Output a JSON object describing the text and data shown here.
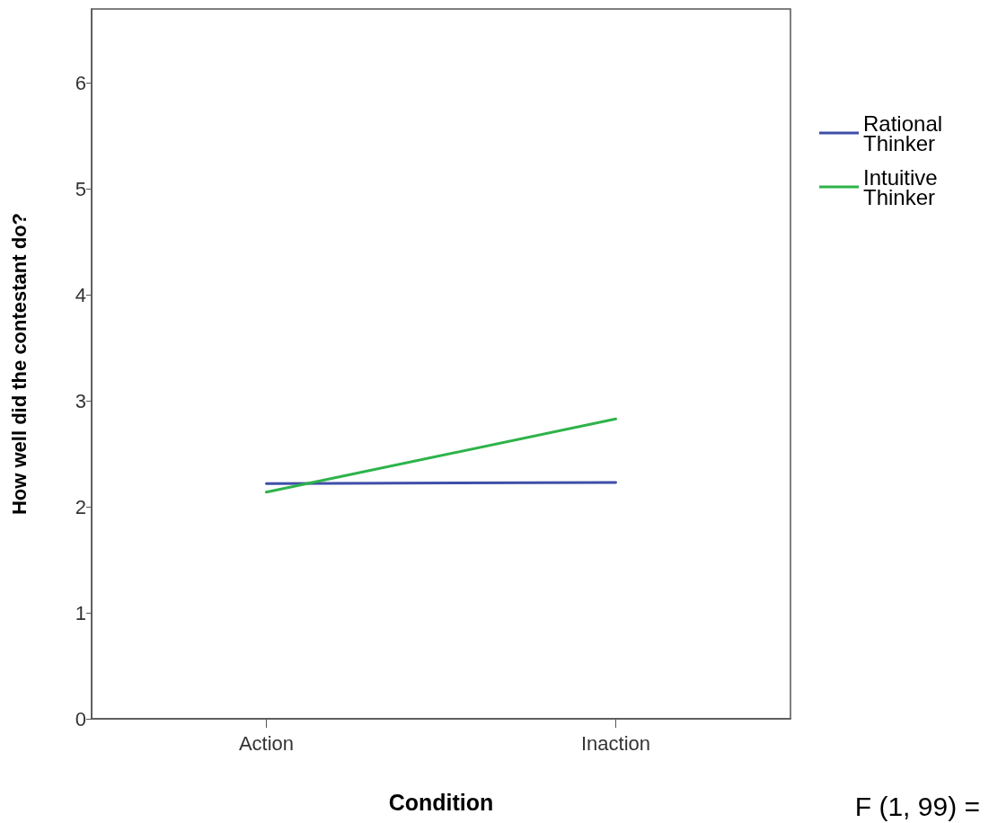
{
  "chart_data": {
    "type": "line",
    "xlabel": "Condition",
    "ylabel": "How well did the contestant do?",
    "categories": [
      "Action",
      "Inaction"
    ],
    "series": [
      {
        "name": "Rational Thinker",
        "color": "#3f4fa8",
        "values": [
          2.22,
          2.23
        ]
      },
      {
        "name": "Intuitive Thinker",
        "color": "#2db34a",
        "values": [
          2.14,
          2.83
        ]
      }
    ],
    "ylim": [
      0,
      6.7
    ],
    "yticks": [
      0,
      1,
      2,
      3,
      4,
      5,
      6
    ],
    "grid": false,
    "legend": "right",
    "marker": "none",
    "line_style": "solid",
    "annotations": [
      "F (1, 99) ="
    ]
  }
}
